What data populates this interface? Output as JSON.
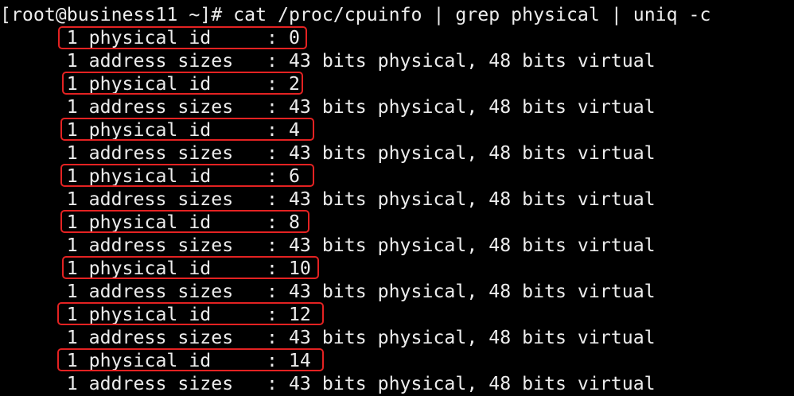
{
  "terminal": {
    "prompt": "[root@business11 ~]# ",
    "command": "cat /proc/cpuinfo | grep physical | uniq -c",
    "output": [
      "      1 physical id     : 0",
      "      1 address sizes   : 43 bits physical, 48 bits virtual",
      "      1 physical id     : 2",
      "      1 address sizes   : 43 bits physical, 48 bits virtual",
      "      1 physical id     : 4",
      "      1 address sizes   : 43 bits physical, 48 bits virtual",
      "      1 physical id     : 6",
      "      1 address sizes   : 43 bits physical, 48 bits virtual",
      "      1 physical id     : 8",
      "      1 address sizes   : 43 bits physical, 48 bits virtual",
      "      1 physical id     : 10",
      "      1 address sizes   : 43 bits physical, 48 bits virtual",
      "      1 physical id     : 12",
      "      1 address sizes   : 43 bits physical, 48 bits virtual",
      "      1 physical id     : 14",
      "      1 address sizes   : 43 bits physical, 48 bits virtual"
    ],
    "highlight_color": "#e42222"
  }
}
